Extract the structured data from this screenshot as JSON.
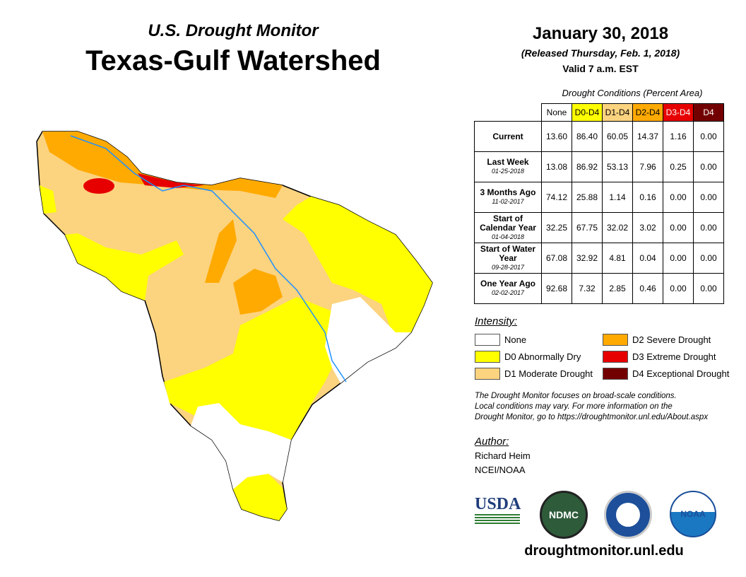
{
  "header": {
    "subtitle": "U.S. Drought Monitor",
    "title": "Texas-Gulf Watershed",
    "date": "January 30, 2018",
    "released": "(Released Thursday, Feb. 1, 2018)",
    "valid": "Valid 7 a.m. EST"
  },
  "table": {
    "caption": "Drought Conditions (Percent Area)",
    "columns": [
      "None",
      "D0-D4",
      "D1-D4",
      "D2-D4",
      "D3-D4",
      "D4"
    ],
    "rows": [
      {
        "label": "Current",
        "date": "",
        "values": [
          "13.60",
          "86.40",
          "60.05",
          "14.37",
          "1.16",
          "0.00"
        ]
      },
      {
        "label": "Last Week",
        "date": "01-25-2018",
        "values": [
          "13.08",
          "86.92",
          "53.13",
          "7.96",
          "0.25",
          "0.00"
        ]
      },
      {
        "label": "3 Months Ago",
        "date": "11-02-2017",
        "values": [
          "74.12",
          "25.88",
          "1.14",
          "0.16",
          "0.00",
          "0.00"
        ]
      },
      {
        "label": "Start of Calendar Year",
        "date": "01-04-2018",
        "values": [
          "32.25",
          "67.75",
          "32.02",
          "3.02",
          "0.00",
          "0.00"
        ]
      },
      {
        "label": "Start of Water Year",
        "date": "09-28-2017",
        "values": [
          "67.08",
          "32.92",
          "4.81",
          "0.04",
          "0.00",
          "0.00"
        ]
      },
      {
        "label": "One Year Ago",
        "date": "02-02-2017",
        "values": [
          "92.68",
          "7.32",
          "2.85",
          "0.46",
          "0.00",
          "0.00"
        ]
      }
    ]
  },
  "colors": {
    "none": "#ffffff",
    "d0": "#ffff00",
    "d1": "#fcd37f",
    "d2": "#ffaa00",
    "d3": "#e60000",
    "d4": "#730000",
    "river": "#1e90ff"
  },
  "legend": {
    "title": "Intensity:",
    "items": [
      "None",
      "D0 Abnormally Dry",
      "D1 Moderate Drought",
      "D2 Severe Drought",
      "D3 Extreme Drought",
      "D4 Exceptional Drought"
    ]
  },
  "note": [
    "The Drought Monitor focuses on broad-scale conditions.",
    "Local conditions may vary. For more information on the",
    "Drought Monitor, go to https://droughtmonitor.unl.edu/About.aspx"
  ],
  "author": {
    "title": "Author:",
    "name": "Richard Heim",
    "org": "NCEI/NOAA"
  },
  "logos": {
    "usda": "USDA",
    "ndmc": "NDMC",
    "noaa": "NOAA"
  },
  "footer": {
    "site": "droughtmonitor.unl.edu"
  }
}
